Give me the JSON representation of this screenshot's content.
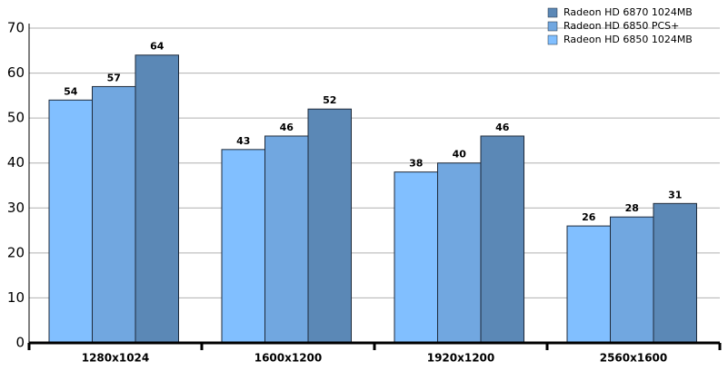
{
  "chart_data": {
    "type": "bar",
    "categories": [
      "1280x1024",
      "1600x1200",
      "1920x1200",
      "2560x1600"
    ],
    "series": [
      {
        "name": "Radeon HD 6870 1024MB",
        "color": "#5b88b6",
        "values": [
          64,
          52,
          46,
          31
        ]
      },
      {
        "name": "Radeon HD 6850 PCS+",
        "color": "#71a7e0",
        "values": [
          57,
          46,
          40,
          28
        ]
      },
      {
        "name": "Radeon HD 6850 1024MB",
        "color": "#81bfff",
        "values": [
          54,
          43,
          38,
          26
        ]
      }
    ],
    "ylim": [
      0,
      70
    ],
    "yticks": [
      0,
      10,
      20,
      30,
      40,
      50,
      60,
      70
    ],
    "grid": true,
    "legend": "top-right"
  }
}
